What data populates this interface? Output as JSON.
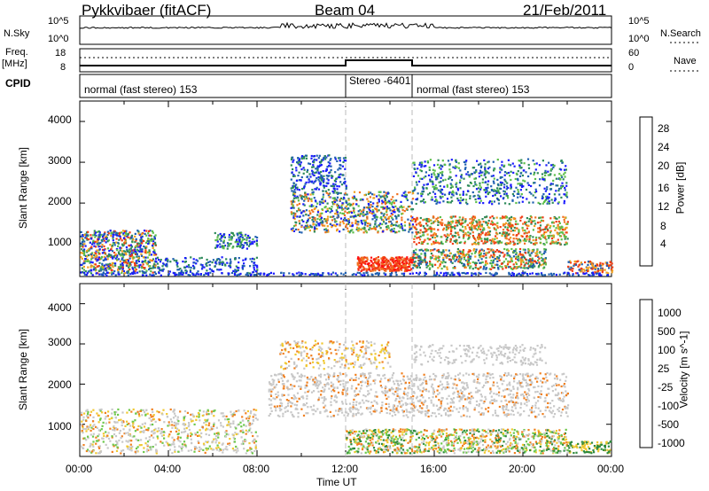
{
  "header": {
    "radar_title": "Pykkvibaer (fitACF)",
    "beam": "Beam 04",
    "date": "21/Feb/2011"
  },
  "top_panels": {
    "nsky_label": "N.Sky",
    "nsky_ticks": [
      "10^5",
      "10^0"
    ],
    "nsearch_label": "N.Search",
    "nsearch_ticks": [
      "10^5",
      "10^0"
    ],
    "freq_label_1": "Freq.",
    "freq_label_2": "[MHz]",
    "freq_ticks": [
      "18",
      "8"
    ],
    "nave_label": "Nave",
    "nave_ticks": [
      "60",
      "0"
    ],
    "cpid_label": "CPID",
    "cpid_segments": [
      {
        "text": "normal (fast stereo) 153",
        "start_h": 0,
        "end_h": 12
      },
      {
        "text": "Stereo -6401",
        "start_h": 12,
        "end_h": 15
      },
      {
        "text": "normal (fast stereo) 153",
        "start_h": 15,
        "end_h": 24
      }
    ]
  },
  "chart_data": [
    {
      "type": "heatmap",
      "title": "",
      "xlabel": "",
      "ylabel": "Slant Range [km]",
      "xlim": [
        0,
        24
      ],
      "ylim": [
        200,
        4500
      ],
      "y_ticks": [
        "1000",
        "2000",
        "3000",
        "4000"
      ],
      "colorbar_label": "Power [dB]",
      "colorbar_ticks": [
        "4",
        "8",
        "12",
        "16",
        "20",
        "24",
        "28"
      ],
      "colors": [
        "#1a1aff",
        "#1f5fb0",
        "#2d8a5a",
        "#5cbf4a",
        "#c8c832",
        "#f0a020",
        "#f07020",
        "#f03c14",
        "#ff1010"
      ],
      "structures": [
        {
          "x": [
            0.0,
            3.5
          ],
          "y": [
            300,
            1400
          ],
          "note": "mixed power echoes"
        },
        {
          "x": [
            9.5,
            15.0
          ],
          "y": [
            1300,
            3200
          ],
          "note": "blue-green bands"
        },
        {
          "x": [
            12.5,
            15.0
          ],
          "y": [
            400,
            700
          ],
          "level": "high (red)"
        },
        {
          "x": [
            15.0,
            22.0
          ],
          "y": [
            1000,
            3100
          ],
          "note": "multiple arcs"
        }
      ]
    },
    {
      "type": "heatmap",
      "title": "",
      "xlabel": "Time UT",
      "ylabel": "Slant Range [km]",
      "xlim": [
        0,
        24
      ],
      "ylim": [
        200,
        4500
      ],
      "y_ticks": [
        "1000",
        "2000",
        "3000",
        "4000"
      ],
      "x_ticks": [
        "00:00",
        "04:00",
        "08:00",
        "12:00",
        "16:00",
        "20:00",
        "00:00"
      ],
      "colorbar_label": "Velocity [m s^-1]",
      "colorbar_ticks": [
        "1000",
        "500",
        "100",
        "25",
        "-25",
        "-100",
        "-500",
        "-1000"
      ],
      "colors": [
        "#2040c0",
        "#3a7ad0",
        "#2e8a3c",
        "#6cc84a",
        "#c8c8c8",
        "#f0c830",
        "#f08020",
        "#f04020",
        "#ff1010"
      ],
      "structures": [
        {
          "x": [
            0.0,
            8.0
          ],
          "y": [
            300,
            1400
          ],
          "note": "mostly near-zero with orange patches"
        },
        {
          "x": [
            9.0,
            22.0
          ],
          "y": [
            1200,
            3000
          ],
          "note": "gray (near zero) bands"
        },
        {
          "x": [
            12.0,
            22.0
          ],
          "y": [
            300,
            900
          ],
          "note": "green (positive) and orange bands"
        }
      ]
    }
  ]
}
